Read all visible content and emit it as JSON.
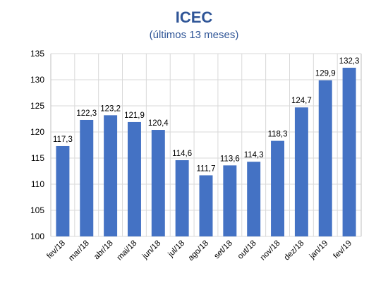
{
  "chart_data": {
    "type": "bar",
    "title": "ICEC",
    "subtitle": "(últimos 13 meses)",
    "categories": [
      "fev/18",
      "mar/18",
      "abr/18",
      "mai/18",
      "jun/18",
      "jul/18",
      "ago/18",
      "set/18",
      "out/18",
      "nov/18",
      "dez/18",
      "jan/19",
      "fev/19"
    ],
    "values": [
      117.3,
      122.3,
      123.2,
      121.9,
      120.4,
      114.6,
      111.7,
      113.6,
      114.3,
      118.3,
      124.7,
      129.9,
      132.3
    ],
    "value_labels": [
      "117,3",
      "122,3",
      "123,2",
      "121,9",
      "120,4",
      "114,6",
      "111,7",
      "113,6",
      "114,3",
      "118,3",
      "124,7",
      "129,9",
      "132,3"
    ],
    "yticks": [
      "100",
      "105",
      "110",
      "115",
      "120",
      "125",
      "130",
      "135"
    ],
    "ylim": [
      100,
      135
    ],
    "xlabel": "",
    "ylabel": "",
    "grid": true,
    "legend": "none",
    "colors": {
      "bar": "#4472C4",
      "title": "#2F5597",
      "subtitle": "#2F5597",
      "grid": "#D9D9D9",
      "axis": "#BFBFBF"
    }
  }
}
